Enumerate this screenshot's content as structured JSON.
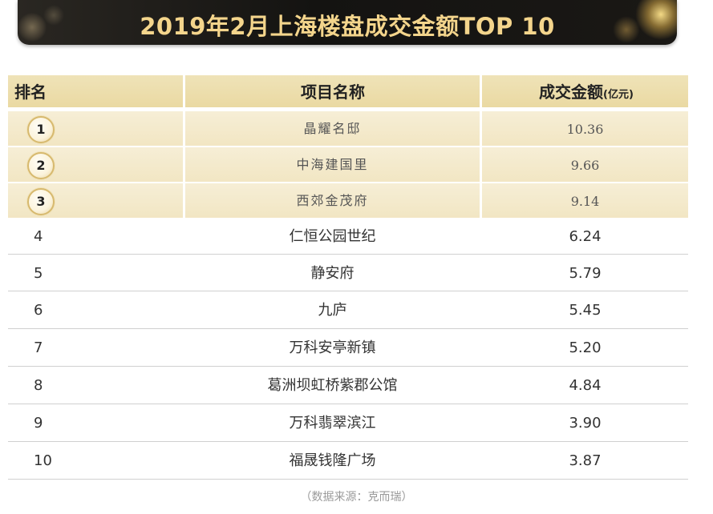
{
  "title": "2019年2月上海楼盘成交金额TOP 10",
  "headers": {
    "rank": "排名",
    "name": "项目名称",
    "amount": "成交金额",
    "unit": "(亿元)"
  },
  "rows": [
    {
      "rank": "1",
      "name": "晶耀名邸",
      "amount": "10.36"
    },
    {
      "rank": "2",
      "name": "中海建国里",
      "amount": "9.66"
    },
    {
      "rank": "3",
      "name": "西郊金茂府",
      "amount": "9.14"
    },
    {
      "rank": "4",
      "name": "仁恒公园世纪",
      "amount": "6.24"
    },
    {
      "rank": "5",
      "name": "静安府",
      "amount": "5.79"
    },
    {
      "rank": "6",
      "name": "九庐",
      "amount": "5.45"
    },
    {
      "rank": "7",
      "name": "万科安亭新镇",
      "amount": "5.20"
    },
    {
      "rank": "8",
      "name": "葛洲坝虹桥紫郡公馆",
      "amount": "4.84"
    },
    {
      "rank": "9",
      "name": "万科翡翠滨江",
      "amount": "3.90"
    },
    {
      "rank": "10",
      "name": "福晟钱隆广场",
      "amount": "3.87"
    }
  ],
  "source": "（数据来源：克而瑞）",
  "colors": {
    "title_gold": "#f4d58c",
    "header_bg": "#ead9a2",
    "top3_bg": "#f2e6c3",
    "banner_bg": "#141311"
  }
}
